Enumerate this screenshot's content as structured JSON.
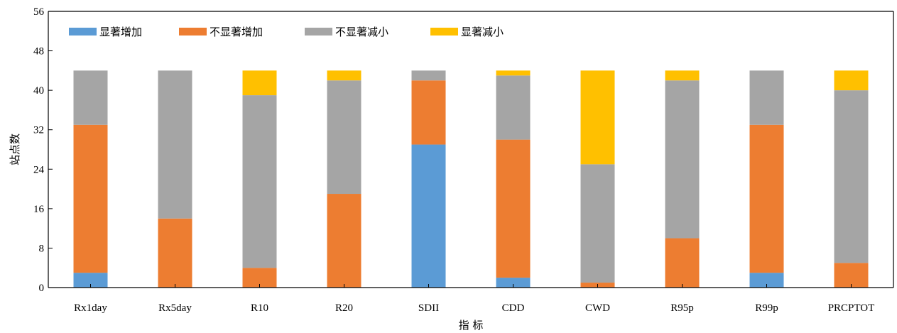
{
  "chart_data": {
    "type": "bar",
    "stacked": true,
    "title": "",
    "xlabel": "指 标",
    "ylabel": "站点数",
    "ylim": [
      0,
      56
    ],
    "yticks": [
      0,
      8,
      16,
      24,
      32,
      40,
      48,
      56
    ],
    "grid": false,
    "legend_position": "top-left",
    "categories": [
      "Rx1day",
      "Rx5day",
      "R10",
      "R20",
      "SDII",
      "CDD",
      "CWD",
      "R95p",
      "R99p",
      "PRCPTOT"
    ],
    "series": [
      {
        "name": "显著增加",
        "color": "#5b9bd5",
        "values": [
          3,
          0,
          0,
          0,
          29,
          2,
          0,
          0,
          3,
          0
        ]
      },
      {
        "name": "不显著增加",
        "color": "#ed7d31",
        "values": [
          30,
          14,
          4,
          19,
          13,
          28,
          1,
          10,
          30,
          5
        ]
      },
      {
        "name": "不显著减小",
        "color": "#a5a5a5",
        "values": [
          11,
          30,
          35,
          23,
          2,
          13,
          24,
          32,
          11,
          35
        ]
      },
      {
        "name": "显著减小",
        "color": "#ffc000",
        "values": [
          0,
          0,
          5,
          2,
          0,
          1,
          19,
          2,
          0,
          4
        ]
      }
    ]
  }
}
